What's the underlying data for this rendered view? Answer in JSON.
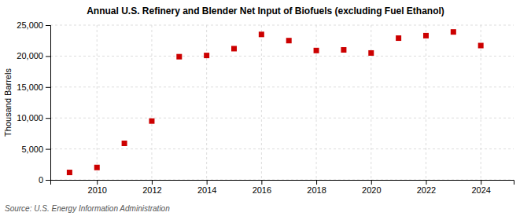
{
  "chart_data": {
    "type": "scatter",
    "title": "Annual U.S. Refinery and Blender Net Input of Biofuels (excluding Fuel Ethanol)",
    "ylabel": "Thousand Barrels",
    "source": "Source: U.S. Energy Information Administration",
    "x": [
      2009,
      2010,
      2011,
      2012,
      2013,
      2014,
      2015,
      2016,
      2017,
      2018,
      2019,
      2020,
      2021,
      2022,
      2023,
      2024
    ],
    "values": [
      1200,
      2000,
      5900,
      9500,
      19900,
      20100,
      21200,
      23500,
      22500,
      20900,
      21000,
      20500,
      22900,
      23300,
      23900,
      21700
    ],
    "color": "#cc0000",
    "marker": "square",
    "xlim": [
      2008.3,
      2025.2
    ],
    "xticks": [
      2010,
      2012,
      2014,
      2016,
      2018,
      2020,
      2022,
      2024
    ],
    "ylim": [
      0,
      25000
    ],
    "yticks": [
      0,
      {
        "value": 5000,
        "label": "5,000"
      },
      {
        "value": 10000,
        "label": "10,000"
      },
      {
        "value": 15000,
        "label": "15,000"
      },
      {
        "value": 20000,
        "label": "20,000"
      },
      {
        "value": 25000,
        "label": "25,000"
      }
    ],
    "grid": true
  }
}
